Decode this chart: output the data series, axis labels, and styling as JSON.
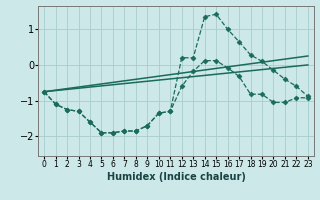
{
  "xlabel": "Humidex (Indice chaleur)",
  "background_color": "#cce8e8",
  "grid_color": "#aacccc",
  "line_color": "#1a6b5a",
  "xlim": [
    -0.5,
    23.5
  ],
  "ylim": [
    -2.55,
    1.65
  ],
  "yticks": [
    -2,
    -1,
    0,
    1
  ],
  "xticks": [
    0,
    1,
    2,
    3,
    4,
    5,
    6,
    7,
    8,
    9,
    10,
    11,
    12,
    13,
    14,
    15,
    16,
    17,
    18,
    19,
    20,
    21,
    22,
    23
  ],
  "series_jagged_x": [
    0,
    1,
    2,
    3,
    4,
    5,
    6,
    7,
    8,
    9,
    10,
    11,
    12,
    13,
    14,
    15,
    16,
    17,
    18,
    19,
    20,
    21,
    22,
    23
  ],
  "series_jagged_y": [
    -0.75,
    -1.1,
    -1.25,
    -1.3,
    -1.6,
    -1.9,
    -1.9,
    -1.85,
    -1.85,
    -1.7,
    -1.35,
    -1.3,
    0.2,
    0.2,
    1.35,
    1.42,
    1.0,
    0.65,
    0.28,
    0.1,
    -0.15,
    -0.4,
    -0.6,
    -0.88
  ],
  "series_curved_x": [
    0,
    1,
    2,
    3,
    4,
    5,
    6,
    7,
    8,
    9,
    10,
    11,
    12,
    13,
    14,
    15,
    16,
    17,
    18,
    19,
    20,
    21,
    22,
    23
  ],
  "series_curved_y": [
    -0.75,
    -1.1,
    -1.25,
    -1.3,
    -1.6,
    -1.9,
    -1.9,
    -1.85,
    -1.85,
    -1.7,
    -1.35,
    -1.3,
    -0.6,
    -0.18,
    0.12,
    0.12,
    -0.08,
    -0.32,
    -0.82,
    -0.82,
    -1.05,
    -1.05,
    -0.92,
    -0.92
  ],
  "line1_x": [
    0,
    23
  ],
  "line1_y": [
    -0.75,
    0.25
  ],
  "line2_x": [
    0,
    23
  ],
  "line2_y": [
    -0.75,
    -0.0
  ]
}
